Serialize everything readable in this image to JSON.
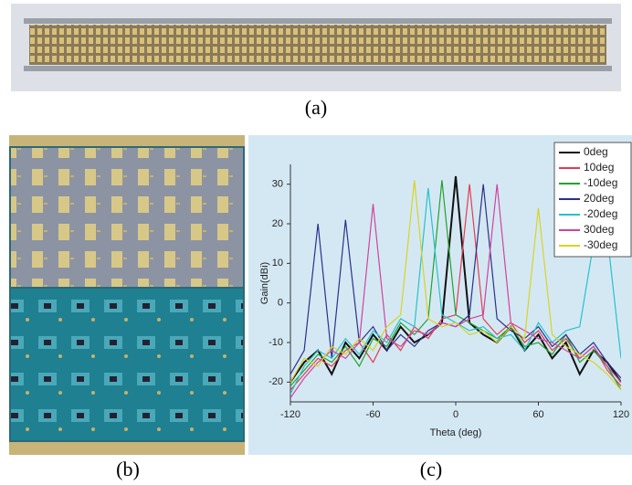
{
  "captions": {
    "a": "(a)",
    "b": "(b)",
    "c": "(c)"
  },
  "chart_data": {
    "type": "line",
    "x_label": "Theta (deg)",
    "y_label": "Gain(dBi)",
    "x": [
      -120,
      -110,
      -100,
      -90,
      -80,
      -70,
      -60,
      -50,
      -40,
      -30,
      -20,
      -10,
      0,
      10,
      20,
      30,
      40,
      50,
      60,
      70,
      80,
      90,
      100,
      110,
      120
    ],
    "xlim": [
      -120,
      120
    ],
    "xticks": [
      -120,
      -60,
      0,
      60,
      120
    ],
    "ylim": [
      -25,
      35
    ],
    "yticks": [
      -20,
      -10,
      0,
      10,
      20,
      30
    ],
    "legend": "top-right",
    "series": [
      {
        "name": "0deg",
        "color": "#111111",
        "values": [
          -20,
          -15,
          -12,
          -18,
          -10,
          -14,
          -8,
          -12,
          -6,
          -10,
          -8,
          -5,
          32,
          -5,
          -8,
          -10,
          -6,
          -12,
          -8,
          -14,
          -10,
          -18,
          -12,
          -15,
          -20
        ]
      },
      {
        "name": "10deg",
        "color": "#e23c50",
        "values": [
          -22,
          -18,
          -14,
          -16,
          -12,
          -10,
          -15,
          -8,
          -12,
          -6,
          -9,
          -4,
          -3,
          30,
          -4,
          -8,
          -5,
          -10,
          -7,
          -12,
          -9,
          -14,
          -11,
          -17,
          -21
        ]
      },
      {
        "name": "-10deg",
        "color": "#22a22a",
        "values": [
          -21,
          -17,
          -13,
          -15,
          -11,
          -16,
          -9,
          -11,
          -5,
          -8,
          -4,
          31,
          -3,
          -5,
          -7,
          -9,
          -6,
          -11,
          -10,
          -13,
          -8,
          -15,
          -12,
          -16,
          -22
        ]
      },
      {
        "name": "20deg",
        "color": "#2c3088",
        "values": [
          -18,
          -12,
          20,
          -14,
          21,
          -10,
          -6,
          -12,
          -8,
          -11,
          -7,
          -5,
          -6,
          -3,
          30,
          -4,
          -7,
          -9,
          -6,
          -11,
          -8,
          -13,
          -10,
          -15,
          -19
        ]
      },
      {
        "name": "-20deg",
        "color": "#26c2c8",
        "values": [
          -23,
          -16,
          -12,
          -14,
          -9,
          -13,
          -7,
          -10,
          -4,
          -6,
          29,
          -3,
          -5,
          -7,
          -6,
          -9,
          -8,
          -12,
          -5,
          -10,
          -7,
          -6,
          15,
          17,
          -14
        ]
      },
      {
        "name": "30deg",
        "color": "#d0449c",
        "values": [
          -24,
          -19,
          -15,
          -12,
          -14,
          -10,
          25,
          -9,
          -11,
          -7,
          -8,
          -5,
          -6,
          -4,
          -3,
          30,
          -5,
          -7,
          -9,
          -10,
          -12,
          -14,
          -11,
          -16,
          -20
        ]
      },
      {
        "name": "-30deg",
        "color": "#d8d420",
        "values": [
          -20,
          -14,
          -16,
          -11,
          -13,
          -9,
          -12,
          -6,
          -3,
          31,
          -4,
          -6,
          -5,
          -8,
          -7,
          -10,
          -6,
          -9,
          24,
          -8,
          -11,
          -13,
          -15,
          -18,
          -22
        ]
      }
    ]
  }
}
